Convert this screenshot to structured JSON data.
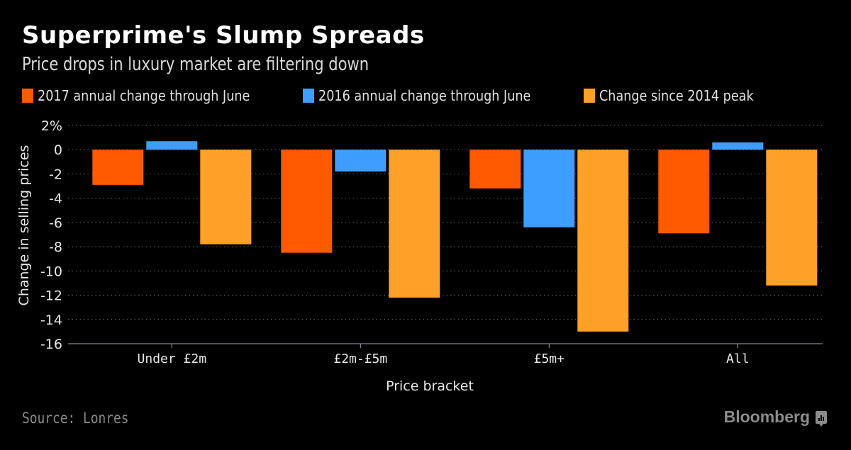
{
  "header": {
    "title": "Superprime's Slump Spreads",
    "subtitle": "Price drops in luxury market are filtering down"
  },
  "footer": {
    "source": "Source: Lonres",
    "brand": "Bloomberg"
  },
  "colors": {
    "background": "#000000",
    "series_2017": "#ff5a00",
    "series_2016": "#3d9eff",
    "series_peak": "#ffa028",
    "grid": "#6e6e6e",
    "axis": "#9aa3b5",
    "text": "#e6e6e6"
  },
  "chart_data": {
    "type": "bar",
    "title": "Superprime's Slump Spreads",
    "subtitle": "Price drops in luxury market are filtering down",
    "xlabel": "Price bracket",
    "ylabel": "Change in selling prices",
    "ylim": [
      -16,
      2
    ],
    "yticks": [
      2,
      0,
      -2,
      -4,
      -6,
      -8,
      -10,
      -12,
      -14,
      -16
    ],
    "ytick_labels": [
      "2%",
      "0",
      "-2",
      "-4",
      "-6",
      "-8",
      "-10",
      "-12",
      "-14",
      "-16"
    ],
    "grid": true,
    "legend_position": "top-left",
    "categories": [
      "Under £2m",
      "£2m-£5m",
      "£5m+",
      "All"
    ],
    "series": [
      {
        "name": "2017 annual change through June",
        "color": "#ff5a00",
        "values": [
          -2.9,
          -8.5,
          -3.2,
          -6.9
        ]
      },
      {
        "name": "2016 annual change through June",
        "color": "#3d9eff",
        "values": [
          0.7,
          -1.8,
          -6.4,
          0.6
        ]
      },
      {
        "name": "Change since 2014 peak",
        "color": "#ffa028",
        "values": [
          -7.8,
          -12.2,
          -15.0,
          -11.2
        ]
      }
    ]
  }
}
